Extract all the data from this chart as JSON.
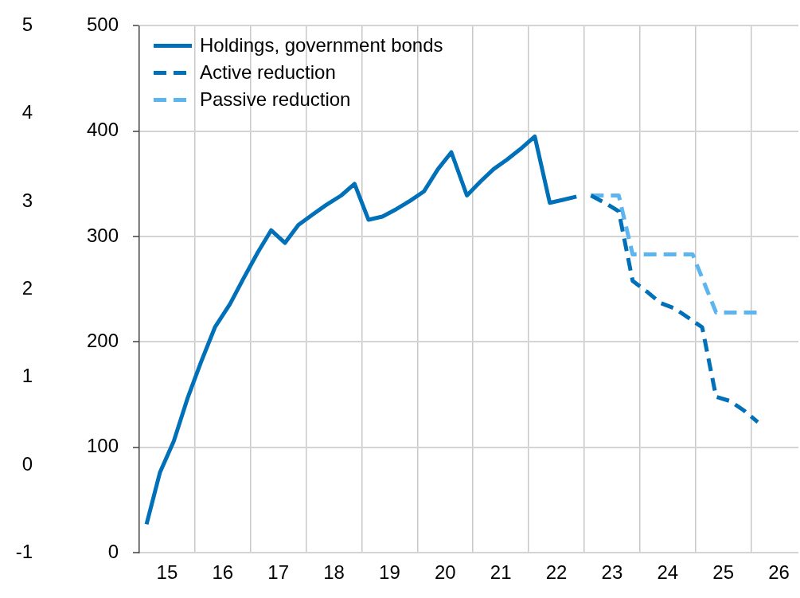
{
  "chart_data": {
    "type": "line",
    "xlim": [
      14.5,
      26.35
    ],
    "xticks": [
      {
        "value": 15.5,
        "label": null
      },
      {
        "value": 16.5,
        "label": null
      },
      {
        "value": 17.5,
        "label": null
      },
      {
        "value": 18.5,
        "label": null
      },
      {
        "value": 19.5,
        "label": null
      },
      {
        "value": 20.5,
        "label": null
      },
      {
        "value": 21.5,
        "label": null
      },
      {
        "value": 22.5,
        "label": null
      },
      {
        "value": 23.5,
        "label": null
      },
      {
        "value": 24.5,
        "label": null
      },
      {
        "value": 25.5,
        "label": null
      },
      15,
      16,
      17,
      18,
      19,
      20,
      21,
      22,
      23,
      24,
      25,
      26
    ],
    "ylim": [
      0,
      500
    ],
    "yticks": [
      0,
      100,
      200,
      300,
      400,
      500
    ],
    "y2lim": [
      -1,
      5
    ],
    "y2ticks": [
      -1,
      0,
      1,
      2,
      3,
      4,
      5
    ],
    "grid": true,
    "legend": "top left",
    "marker": "none",
    "series": [
      {
        "name": "Holdings, government bonds",
        "color": "#0070b8",
        "line_style": "solid",
        "x": [
          14.63,
          14.87,
          15.12,
          15.37,
          15.61,
          15.86,
          16.13,
          16.37,
          16.63,
          16.87,
          17.12,
          17.36,
          17.62,
          17.86,
          18.13,
          18.37,
          18.62,
          18.87,
          19.12,
          19.37,
          19.62,
          19.87,
          20.11,
          20.39,
          20.63,
          20.87,
          21.11,
          21.35,
          21.61,
          21.88,
          22.13,
          22.36
        ],
        "values": [
          27,
          76,
          106,
          147,
          181,
          214,
          236,
          260,
          285,
          306,
          294,
          311,
          321,
          330,
          339,
          350,
          316,
          319,
          326,
          334,
          343,
          364,
          380,
          339,
          352,
          364,
          373,
          383,
          395,
          332,
          335,
          338
        ]
      },
      {
        "name": "Active reduction",
        "color": "#0070b8",
        "line_style": "dashed",
        "x": [
          22.62,
          22.87,
          23.12,
          23.37,
          23.62,
          23.87,
          24.12,
          24.37,
          24.62,
          24.87,
          25.12,
          25.37,
          25.62
        ],
        "values": [
          339,
          332,
          324,
          258,
          248,
          237,
          232,
          223,
          214,
          148,
          144,
          135,
          124
        ]
      },
      {
        "name": "Passive reduction",
        "color": "#5db5f0",
        "line_style": "dashed",
        "x": [
          22.62,
          23.12,
          23.37,
          24.45,
          24.87,
          25.62
        ],
        "values": [
          339,
          339,
          283,
          283,
          228,
          228
        ]
      }
    ]
  }
}
